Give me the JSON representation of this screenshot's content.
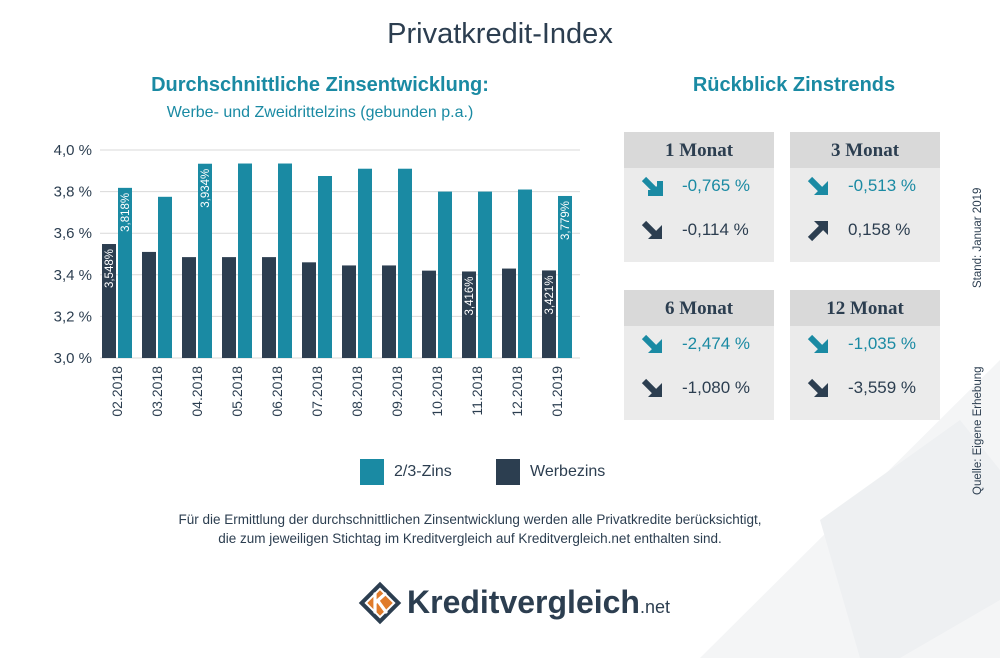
{
  "title": "Privatkredit-Index",
  "chart_title": "Durchschnittliche Zinsentwicklung:",
  "chart_subtitle": "Werbe- und Zweidrittelzins (gebunden p.a.)",
  "colors": {
    "teal": "#1a8aa3",
    "dark": "#2c3e50"
  },
  "chart_data": {
    "type": "bar",
    "title": "Durchschnittliche Zinsentwicklung:",
    "subtitle": "Werbe- und Zweidrittelzins (gebunden p.a.)",
    "categories": [
      "02.2018",
      "03.2018",
      "04.2018",
      "05.2018",
      "06.2018",
      "07.2018",
      "08.2018",
      "09.2018",
      "10.2018",
      "11.2018",
      "12.2018",
      "01.2019"
    ],
    "ylim": [
      3.0,
      4.0
    ],
    "yticks": [
      "3,0 %",
      "3,2 %",
      "3,4 %",
      "3,6 %",
      "3,8 %",
      "4,0 %"
    ],
    "grid": true,
    "legend_position": "bottom",
    "series": [
      {
        "name": "Werbezins",
        "color": "#2c3e50",
        "values": [
          3.548,
          3.51,
          3.485,
          3.485,
          3.485,
          3.46,
          3.445,
          3.445,
          3.42,
          3.416,
          3.43,
          3.421
        ],
        "labels": [
          "3,548%",
          "",
          "",
          "",
          "",
          "",
          "",
          "",
          "",
          "3,416%",
          "",
          "3,421%"
        ]
      },
      {
        "name": "2/3-Zins",
        "color": "#1a8aa3",
        "values": [
          3.818,
          3.775,
          3.934,
          3.935,
          3.935,
          3.875,
          3.91,
          3.91,
          3.8,
          3.8,
          3.81,
          3.779
        ],
        "labels": [
          "3,818%",
          "",
          "3,934%",
          "",
          "",
          "",
          "",
          "",
          "",
          "",
          "",
          "3,779%"
        ]
      }
    ]
  },
  "legend": [
    {
      "label": "2/3-Zins",
      "color": "#1a8aa3"
    },
    {
      "label": "Werbezins",
      "color": "#2c3e50"
    }
  ],
  "footnote": {
    "line1": "Für die Ermittlung der durchschnittlichen Zinsentwicklung werden alle Privatkredite berücksichtigt,",
    "line2": "die zum jeweiligen Stichtag im Kreditvergleich auf Kreditvergleich.net enthalten sind."
  },
  "logo": {
    "name": "Kreditvergleich",
    "suffix": ".net"
  },
  "trends": {
    "title": "Rückblick Zinstrends",
    "cards": [
      {
        "label": "1 Monat",
        "teal_value": "-0,765 %",
        "teal_icon": "arrow-down-icon",
        "dark_value": "-0,114 %",
        "dark_icon": "arrow-down-icon"
      },
      {
        "label": "3 Monat",
        "teal_value": "-0,513 %",
        "teal_icon": "arrow-down-icon",
        "dark_value": "0,158 %",
        "dark_icon": "arrow-up-icon"
      },
      {
        "label": "6 Monat",
        "teal_value": "-2,474 %",
        "teal_icon": "arrow-down-icon",
        "dark_value": "-1,080 %",
        "dark_icon": "arrow-down-icon"
      },
      {
        "label": "12 Monat",
        "teal_value": "-1,035 %",
        "teal_icon": "arrow-down-icon",
        "dark_value": "-3,559 %",
        "dark_icon": "arrow-down-icon"
      }
    ]
  },
  "side": {
    "stand": "Stand: Januar 2019",
    "quelle": "Quelle: Eigene Erhebung"
  }
}
